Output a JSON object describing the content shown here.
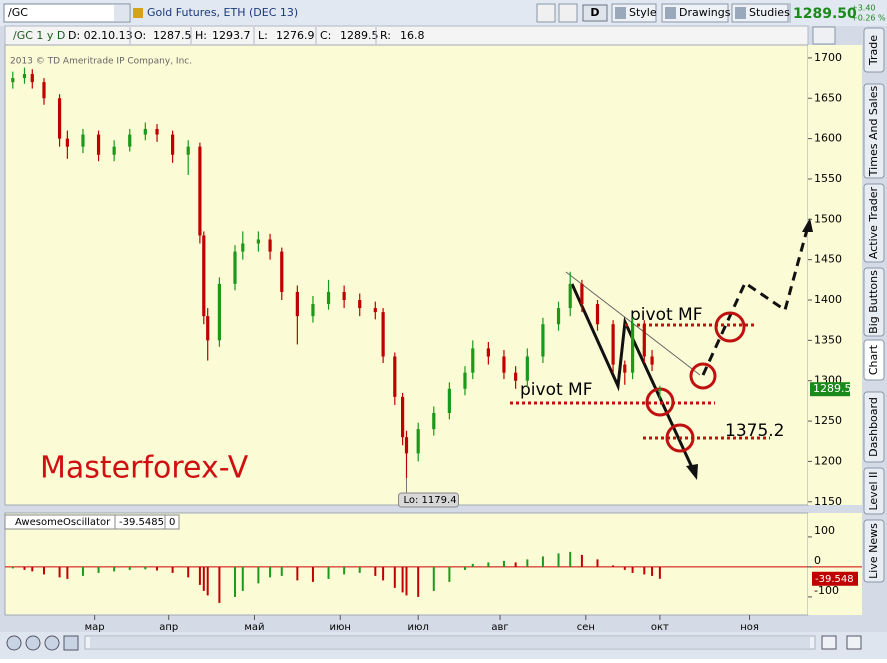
{
  "toolbar": {
    "symbol": "/GC",
    "description": "Gold Futures, ETH (DEC 13)",
    "period_button": "D",
    "buttons": [
      "Style",
      "Drawings",
      "Studies"
    ],
    "last_price": "1289.50",
    "change": "+3.40",
    "change_pct": "+0.26 %"
  },
  "info_bar": {
    "symbol_period": "/GC 1 y D",
    "date": "D: 02.10.13",
    "fields": [
      [
        "O:",
        "1287.5"
      ],
      [
        "H:",
        "1293.7"
      ],
      [
        "L:",
        "1276.9"
      ],
      [
        "C:",
        "1289.5"
      ],
      [
        "R:",
        "16.8"
      ]
    ]
  },
  "chart_data": [
    {
      "type": "candlestick",
      "copyright": "2013 © TD Ameritrade IP Company, Inc.",
      "watermark": "Masterforex-V",
      "low_label": "Lo: 1179.4",
      "last_price_label": "1289.5",
      "annotations": [
        "pivot MF",
        "pivot MF",
        "1375.2"
      ],
      "x": [
        1,
        4,
        6,
        9,
        13,
        15,
        19,
        23,
        27,
        31,
        35,
        38,
        42,
        46,
        49,
        50,
        51,
        54,
        58,
        60,
        64,
        67,
        70,
        74,
        78,
        82,
        86,
        90,
        94,
        96,
        99,
        101,
        102,
        105,
        109,
        113,
        117,
        119,
        123,
        127,
        130,
        133,
        137,
        141,
        144,
        147,
        151,
        155,
        158,
        160,
        163,
        165,
        167
      ],
      "open": [
        1670,
        1675,
        1680,
        1670,
        1650,
        1600,
        1590,
        1605,
        1580,
        1590,
        1605,
        1612,
        1605,
        1580,
        1590,
        1480,
        1380,
        1350,
        1420,
        1460,
        1470,
        1475,
        1460,
        1410,
        1380,
        1395,
        1410,
        1400,
        1390,
        1385,
        1330,
        1280,
        1230,
        1210,
        1240,
        1260,
        1290,
        1310,
        1340,
        1330,
        1310,
        1300,
        1330,
        1370,
        1390,
        1420,
        1395,
        1370,
        1320,
        1310,
        1370,
        1330,
        1287.5
      ],
      "high": [
        1683,
        1688,
        1686,
        1675,
        1655,
        1610,
        1612,
        1610,
        1598,
        1612,
        1620,
        1618,
        1610,
        1598,
        1595,
        1485,
        1390,
        1428,
        1468,
        1485,
        1485,
        1482,
        1465,
        1418,
        1405,
        1425,
        1418,
        1408,
        1398,
        1390,
        1335,
        1285,
        1238,
        1248,
        1268,
        1298,
        1318,
        1350,
        1348,
        1338,
        1318,
        1340,
        1378,
        1398,
        1435,
        1425,
        1400,
        1375,
        1325,
        1378,
        1375,
        1338,
        1293.7
      ],
      "low": [
        1662,
        1668,
        1662,
        1642,
        1590,
        1575,
        1582,
        1572,
        1572,
        1584,
        1598,
        1596,
        1570,
        1555,
        1470,
        1370,
        1325,
        1342,
        1412,
        1450,
        1460,
        1450,
        1400,
        1345,
        1372,
        1388,
        1390,
        1380,
        1376,
        1322,
        1270,
        1220,
        1179.4,
        1200,
        1232,
        1252,
        1282,
        1302,
        1320,
        1302,
        1290,
        1292,
        1322,
        1362,
        1380,
        1385,
        1362,
        1310,
        1295,
        1302,
        1322,
        1312,
        1276.9
      ],
      "close": [
        1675,
        1680,
        1670,
        1650,
        1600,
        1590,
        1605,
        1580,
        1590,
        1605,
        1612,
        1605,
        1580,
        1590,
        1480,
        1380,
        1350,
        1420,
        1460,
        1470,
        1475,
        1460,
        1410,
        1380,
        1395,
        1410,
        1400,
        1390,
        1385,
        1330,
        1280,
        1230,
        1210,
        1240,
        1260,
        1290,
        1310,
        1340,
        1330,
        1310,
        1300,
        1330,
        1370,
        1390,
        1420,
        1395,
        1370,
        1320,
        1310,
        1370,
        1330,
        1320,
        1289.5
      ],
      "xlim": [
        -1,
        205
      ],
      "xticks": [
        {
          "value": 22,
          "label": "мар"
        },
        {
          "value": 41,
          "label": "апр"
        },
        {
          "value": 63,
          "label": "май"
        },
        {
          "value": 85,
          "label": "июн"
        },
        {
          "value": 105,
          "label": "июл"
        },
        {
          "value": 126,
          "label": "авг"
        },
        {
          "value": 148,
          "label": "сен"
        },
        {
          "value": 167,
          "label": "окт"
        },
        {
          "value": 190,
          "label": "ноя"
        }
      ],
      "ylim": [
        1146,
        1716
      ],
      "yticks": [
        1150,
        1200,
        1250,
        1300,
        1350,
        1400,
        1450,
        1500,
        1550,
        1600,
        1650,
        1700
      ],
      "up_color": "#1a9a1a",
      "down_color": "#c00000"
    },
    {
      "type": "bar",
      "title": "AwesomeOscillator",
      "header_values": [
        "-39.5485",
        "0"
      ],
      "last_value_label": "-39.548",
      "x": [
        1,
        4,
        6,
        9,
        13,
        15,
        19,
        23,
        27,
        31,
        35,
        38,
        42,
        46,
        49,
        50,
        51,
        54,
        58,
        60,
        64,
        67,
        70,
        74,
        78,
        82,
        86,
        90,
        94,
        96,
        99,
        101,
        102,
        105,
        109,
        113,
        117,
        119,
        123,
        127,
        130,
        133,
        137,
        141,
        144,
        147,
        151,
        155,
        158,
        160,
        163,
        165,
        167
      ],
      "values": [
        -5,
        -10,
        -15,
        -25,
        -35,
        -40,
        -30,
        -20,
        -15,
        -10,
        -8,
        -12,
        -20,
        -35,
        -60,
        -80,
        -95,
        -120,
        -100,
        -80,
        -55,
        -35,
        -30,
        -45,
        -50,
        -40,
        -25,
        -20,
        -30,
        -45,
        -70,
        -85,
        -95,
        -100,
        -80,
        -50,
        -10,
        10,
        15,
        20,
        15,
        25,
        35,
        45,
        50,
        40,
        25,
        5,
        -10,
        -20,
        -25,
        -30,
        -39.5485
      ],
      "xlim": [
        -1,
        205
      ],
      "ylim": [
        -157,
        123
      ],
      "yticks": [
        -100,
        0,
        100
      ],
      "up_color": "#1a9a1a",
      "down_color": "#c00000",
      "zero_line_color": "#cc0000"
    }
  ],
  "sidebar_tabs": [
    "Trade",
    "Times And Sales",
    "Active Trader",
    "Big Buttons",
    "Chart",
    "Dashboard",
    "Level II",
    "Live News"
  ]
}
